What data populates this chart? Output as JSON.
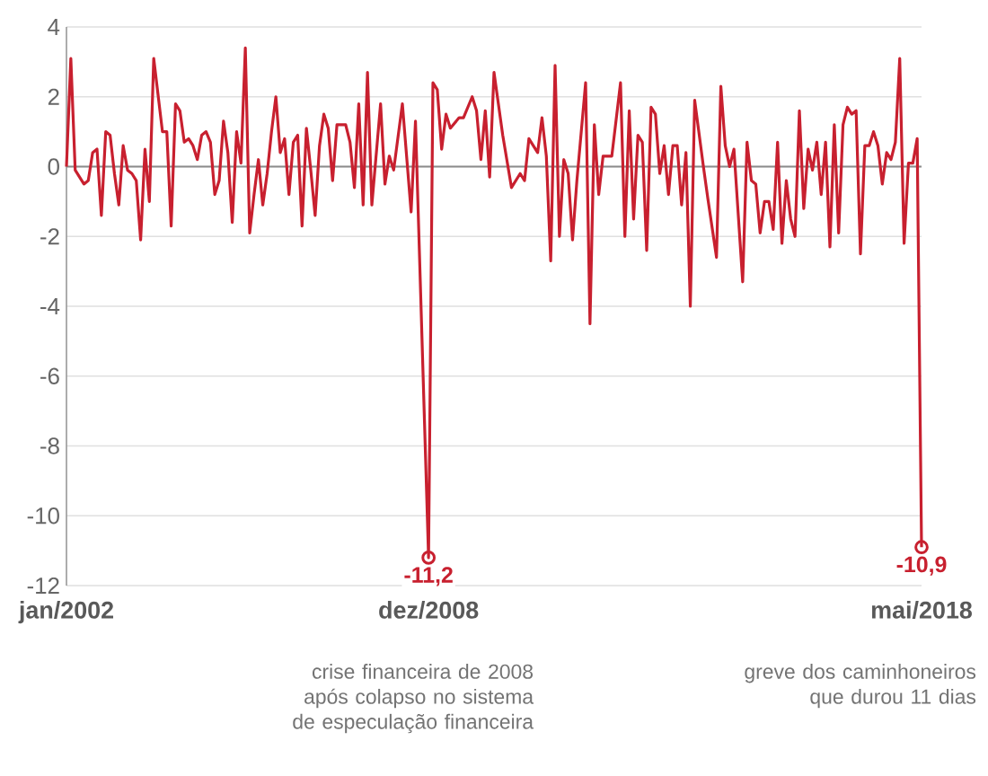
{
  "chart_data": {
    "type": "line",
    "color": "#c8202f",
    "x": [
      "2002-01",
      "2002-02",
      "2002-03",
      "2002-05",
      "2002-06",
      "2002-07",
      "2002-08",
      "2002-09",
      "2002-10",
      "2002-11",
      "2002-12",
      "2003-01",
      "2003-02",
      "2003-03",
      "2003-04",
      "2003-05",
      "2003-06",
      "2003-07",
      "2003-08",
      "2003-09",
      "2003-11",
      "2003-12",
      "2004-01",
      "2004-02",
      "2004-03",
      "2004-04",
      "2004-05",
      "2004-06",
      "2004-07",
      "2004-08",
      "2004-09",
      "2004-10",
      "2004-11",
      "2004-12",
      "2005-01",
      "2005-02",
      "2005-03",
      "2005-04",
      "2005-05",
      "2005-06",
      "2005-07",
      "2005-08",
      "2005-09",
      "2005-10",
      "2005-11",
      "2005-12",
      "2006-01",
      "2006-02",
      "2006-03",
      "2006-04",
      "2006-05",
      "2006-06",
      "2006-07",
      "2006-08",
      "2006-09",
      "2006-10",
      "2006-11",
      "2006-12",
      "2007-01",
      "2007-02",
      "2007-03",
      "2007-04",
      "2007-05",
      "2007-06",
      "2007-07",
      "2007-08",
      "2007-09",
      "2007-10",
      "2007-11",
      "2008-01",
      "2008-02",
      "2008-03",
      "2008-04",
      "2008-06",
      "2008-08",
      "2008-09",
      "2008-12",
      "2009-01",
      "2009-02",
      "2009-03",
      "2009-04",
      "2009-05",
      "2009-07",
      "2009-08",
      "2009-10",
      "2009-11",
      "2009-12",
      "2010-01",
      "2010-02",
      "2010-03",
      "2010-05",
      "2010-07",
      "2010-09",
      "2010-10",
      "2010-11",
      "2010-12",
      "2011-01",
      "2011-02",
      "2011-03",
      "2011-04",
      "2011-05",
      "2011-06",
      "2011-07",
      "2011-08",
      "2011-09",
      "2011-10",
      "2011-12",
      "2012-01",
      "2012-02",
      "2012-03",
      "2012-04",
      "2012-05",
      "2012-06",
      "2012-08",
      "2012-09",
      "2012-10",
      "2012-11",
      "2012-12",
      "2013-01",
      "2013-02",
      "2013-03",
      "2013-04",
      "2013-05",
      "2013-06",
      "2013-07",
      "2013-08",
      "2013-09",
      "2013-10",
      "2013-11",
      "2013-12",
      "2014-01",
      "2014-03",
      "2014-04",
      "2014-06",
      "2014-07",
      "2014-08",
      "2014-09",
      "2014-10",
      "2014-12",
      "2015-01",
      "2015-02",
      "2015-03",
      "2015-04",
      "2015-05",
      "2015-06",
      "2015-07",
      "2015-08",
      "2015-09",
      "2015-10",
      "2015-11",
      "2015-12",
      "2016-01",
      "2016-02",
      "2016-03",
      "2016-04",
      "2016-05",
      "2016-06",
      "2016-07",
      "2016-08",
      "2016-09",
      "2016-10",
      "2016-11",
      "2016-12",
      "2017-01",
      "2017-02",
      "2017-03",
      "2017-04",
      "2017-05",
      "2017-06",
      "2017-07",
      "2017-08",
      "2017-09",
      "2017-10",
      "2017-11",
      "2017-12",
      "2018-01",
      "2018-02",
      "2018-03",
      "2018-04",
      "2018-05"
    ],
    "values": [
      0.0,
      3.1,
      -0.1,
      -0.5,
      -0.4,
      0.4,
      0.5,
      -1.4,
      1.0,
      0.9,
      -0.2,
      -1.1,
      0.6,
      -0.1,
      -0.2,
      -0.4,
      -2.1,
      0.5,
      -1.0,
      3.1,
      1.0,
      1.0,
      -1.7,
      1.8,
      1.6,
      0.7,
      0.8,
      0.6,
      0.2,
      0.9,
      1.0,
      0.7,
      -0.8,
      -0.4,
      1.3,
      0.4,
      -1.6,
      1.0,
      0.1,
      3.4,
      -1.9,
      -0.8,
      0.2,
      -1.1,
      -0.2,
      1.0,
      2.0,
      0.4,
      0.8,
      -0.8,
      0.7,
      0.9,
      -1.7,
      1.1,
      -0.1,
      -1.4,
      0.6,
      1.5,
      1.1,
      -0.4,
      1.2,
      1.2,
      1.2,
      0.7,
      -0.6,
      1.8,
      -1.1,
      2.7,
      -1.1,
      1.8,
      -0.5,
      0.3,
      -0.1,
      1.8,
      -1.3,
      1.3,
      -11.2,
      2.4,
      2.2,
      0.5,
      1.5,
      1.1,
      1.4,
      1.4,
      2.0,
      1.6,
      0.2,
      1.6,
      -0.3,
      2.7,
      0.9,
      -0.6,
      -0.2,
      -0.4,
      0.8,
      0.6,
      0.4,
      1.4,
      0.3,
      -2.7,
      2.9,
      -2.0,
      0.2,
      -0.2,
      -2.1,
      -0.4,
      2.4,
      -4.5,
      1.2,
      -0.8,
      0.3,
      0.3,
      0.3,
      2.4,
      -2.0,
      1.6,
      -1.5,
      0.9,
      0.7,
      -2.4,
      1.7,
      1.5,
      -0.2,
      0.6,
      -0.8,
      0.6,
      0.6,
      -1.1,
      0.4,
      -4.0,
      1.9,
      0.0,
      -0.9,
      -2.6,
      2.3,
      0.6,
      0.0,
      0.5,
      -3.3,
      0.7,
      -0.4,
      -0.5,
      -1.9,
      -1.0,
      -1.0,
      -1.8,
      0.7,
      -2.2,
      -0.4,
      -1.5,
      -2.0,
      1.6,
      -1.2,
      0.5,
      -0.1,
      0.7,
      -0.8,
      0.7,
      -2.3,
      1.2,
      -1.9,
      1.2,
      1.7,
      1.5,
      1.6,
      -2.5,
      0.6,
      0.6,
      1.0,
      0.6,
      -0.5,
      0.4,
      0.2,
      0.7,
      3.1,
      -2.2,
      0.1,
      0.1,
      0.8,
      -10.9
    ],
    "value_labels": [
      null,
      null,
      null,
      null,
      null,
      null,
      null,
      null,
      null,
      null,
      null,
      null,
      null,
      null,
      null,
      null,
      null,
      null,
      null,
      null,
      null,
      null,
      null,
      null,
      null,
      null,
      null,
      null,
      null,
      null,
      null,
      null,
      null,
      null,
      null,
      null,
      null,
      null,
      null,
      null,
      null,
      null,
      null,
      null,
      null,
      null,
      null,
      null,
      null,
      null,
      null,
      null,
      null,
      null,
      null,
      null,
      null,
      null,
      null,
      null,
      null,
      null,
      null,
      null,
      null,
      null,
      null,
      null,
      null,
      null,
      null,
      null,
      null,
      null,
      null,
      null,
      "-11,2",
      null,
      null,
      null,
      null,
      null,
      null,
      null,
      null,
      null,
      null,
      null,
      null,
      null,
      null,
      null,
      null,
      null,
      null,
      null,
      null,
      null,
      null,
      null,
      null,
      null,
      null,
      null,
      null,
      null,
      null,
      null,
      null,
      null,
      null,
      null,
      null,
      null,
      null,
      null,
      null,
      null,
      null,
      null,
      null,
      null,
      null,
      null,
      null,
      null,
      null,
      null,
      null,
      null,
      null,
      null,
      null,
      null,
      null,
      null,
      null,
      null,
      null,
      null,
      null,
      null,
      null,
      null,
      null,
      null,
      null,
      null,
      null,
      null,
      null,
      null,
      null,
      null,
      null,
      null,
      null,
      null,
      null,
      null,
      null,
      null,
      null,
      null,
      null,
      null,
      null,
      null,
      null,
      null,
      null,
      null,
      null,
      null,
      null,
      null,
      null,
      null,
      null,
      "-10,9"
    ],
    "xlim": [
      "2002-01",
      "2018-05"
    ],
    "xticks": [
      {
        "value": "2002-01",
        "label": "jan/2002"
      },
      {
        "value": "2008-12",
        "label": "dez/2008"
      },
      {
        "value": "2018-05",
        "label": "mai/2018"
      }
    ],
    "ylim": [
      -12,
      4
    ],
    "yticks": [
      -12,
      -10,
      -8,
      -6,
      -4,
      -2,
      0,
      2,
      4
    ],
    "grid": "y",
    "ref_lines": [
      {
        "axis": "y",
        "value": 0,
        "color": "#8c8c8c"
      }
    ],
    "annotations": [
      "crise financeira de 2008 após colapso no sistema de especulação financeira",
      "greve dos caminhoneiros que durou 11 dias"
    ]
  }
}
